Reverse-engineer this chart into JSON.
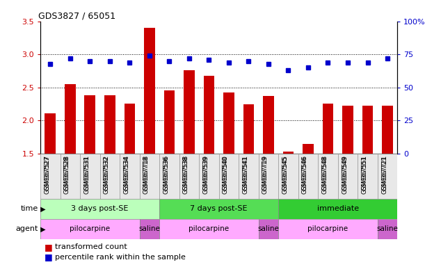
{
  "title": "GDS3827 / 65051",
  "samples": [
    "GSM367527",
    "GSM367528",
    "GSM367531",
    "GSM367532",
    "GSM367534",
    "GSM367718",
    "GSM367536",
    "GSM367538",
    "GSM367539",
    "GSM367540",
    "GSM367541",
    "GSM367719",
    "GSM367545",
    "GSM367546",
    "GSM367548",
    "GSM367549",
    "GSM367551",
    "GSM367721"
  ],
  "bar_values": [
    2.11,
    2.55,
    2.38,
    2.38,
    2.26,
    3.4,
    2.46,
    2.76,
    2.68,
    2.42,
    2.24,
    2.37,
    1.53,
    1.64,
    2.26,
    2.22,
    2.22,
    2.22
  ],
  "dot_values": [
    68,
    72,
    70,
    70,
    69,
    74,
    70,
    72,
    71,
    69,
    70,
    68,
    63,
    65,
    69,
    69,
    69,
    72
  ],
  "bar_color": "#cc0000",
  "dot_color": "#0000cc",
  "ylim_left": [
    1.5,
    3.5
  ],
  "ylim_right": [
    0,
    100
  ],
  "yticks_left": [
    1.5,
    2.0,
    2.5,
    3.0,
    3.5
  ],
  "yticks_right": [
    0,
    25,
    50,
    75,
    100
  ],
  "ytick_labels_right": [
    "0",
    "25",
    "50",
    "75",
    "100%"
  ],
  "grid_values": [
    2.0,
    2.5,
    3.0
  ],
  "time_groups": [
    {
      "label": "3 days post-SE",
      "start": 0,
      "end": 6,
      "color": "#bbffbb"
    },
    {
      "label": "7 days post-SE",
      "start": 6,
      "end": 12,
      "color": "#55dd55"
    },
    {
      "label": "immediate",
      "start": 12,
      "end": 18,
      "color": "#33cc33"
    }
  ],
  "agent_groups": [
    {
      "label": "pilocarpine",
      "start": 0,
      "end": 5,
      "color": "#ffaaff"
    },
    {
      "label": "saline",
      "start": 5,
      "end": 6,
      "color": "#cc66cc"
    },
    {
      "label": "pilocarpine",
      "start": 6,
      "end": 11,
      "color": "#ffaaff"
    },
    {
      "label": "saline",
      "start": 11,
      "end": 12,
      "color": "#cc66cc"
    },
    {
      "label": "pilocarpine",
      "start": 12,
      "end": 17,
      "color": "#ffaaff"
    },
    {
      "label": "saline",
      "start": 17,
      "end": 18,
      "color": "#cc66cc"
    }
  ],
  "legend_bar_label": "transformed count",
  "legend_dot_label": "percentile rank within the sample",
  "time_label": "time",
  "agent_label": "agent",
  "bar_width": 0.55
}
